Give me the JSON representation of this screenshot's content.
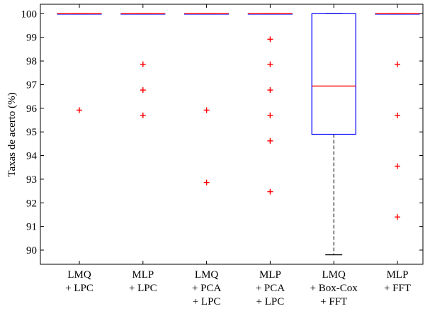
{
  "chart_data": {
    "type": "box",
    "ylabel": "Taxas de acerto (%)",
    "xlabel": "",
    "ylim": [
      89.4,
      100.4
    ],
    "yticks": [
      90,
      91,
      92,
      93,
      94,
      95,
      96,
      97,
      98,
      99,
      100
    ],
    "grid": false,
    "colors": {
      "box": "#0000ff",
      "median": "#ff0000",
      "outlier": "#ff0000",
      "whisker": "#000000"
    },
    "categories": [
      {
        "lines": [
          "LMQ",
          "+ LPC"
        ],
        "q1": 100,
        "median": 100,
        "q3": 100,
        "whisker_low": 100,
        "whisker_high": 100,
        "outliers": [
          95.92
        ]
      },
      {
        "lines": [
          "MLP",
          "+ LPC"
        ],
        "q1": 100,
        "median": 100,
        "q3": 100,
        "whisker_low": 100,
        "whisker_high": 100,
        "outliers": [
          97.86,
          96.77,
          95.7
        ]
      },
      {
        "lines": [
          "LMQ",
          "+ PCA",
          "+ LPC"
        ],
        "q1": 100,
        "median": 100,
        "q3": 100,
        "whisker_low": 100,
        "whisker_high": 100,
        "outliers": [
          95.92,
          92.86
        ]
      },
      {
        "lines": [
          "MLP",
          "+ PCA",
          "+ LPC"
        ],
        "q1": 100,
        "median": 100,
        "q3": 100,
        "whisker_low": 100,
        "whisker_high": 100,
        "outliers": [
          98.92,
          97.86,
          96.77,
          95.7,
          94.62,
          92.47
        ]
      },
      {
        "lines": [
          "LMQ",
          "+ Box-Cox",
          "+ FFT"
        ],
        "q1": 94.9,
        "median": 96.94,
        "q3": 100,
        "whisker_low": 89.8,
        "whisker_high": 100,
        "outliers": []
      },
      {
        "lines": [
          "MLP",
          "+ FFT"
        ],
        "q1": 100,
        "median": 100,
        "q3": 100,
        "whisker_low": 100,
        "whisker_high": 100,
        "outliers": [
          97.86,
          95.7,
          93.55,
          91.4
        ]
      }
    ]
  }
}
